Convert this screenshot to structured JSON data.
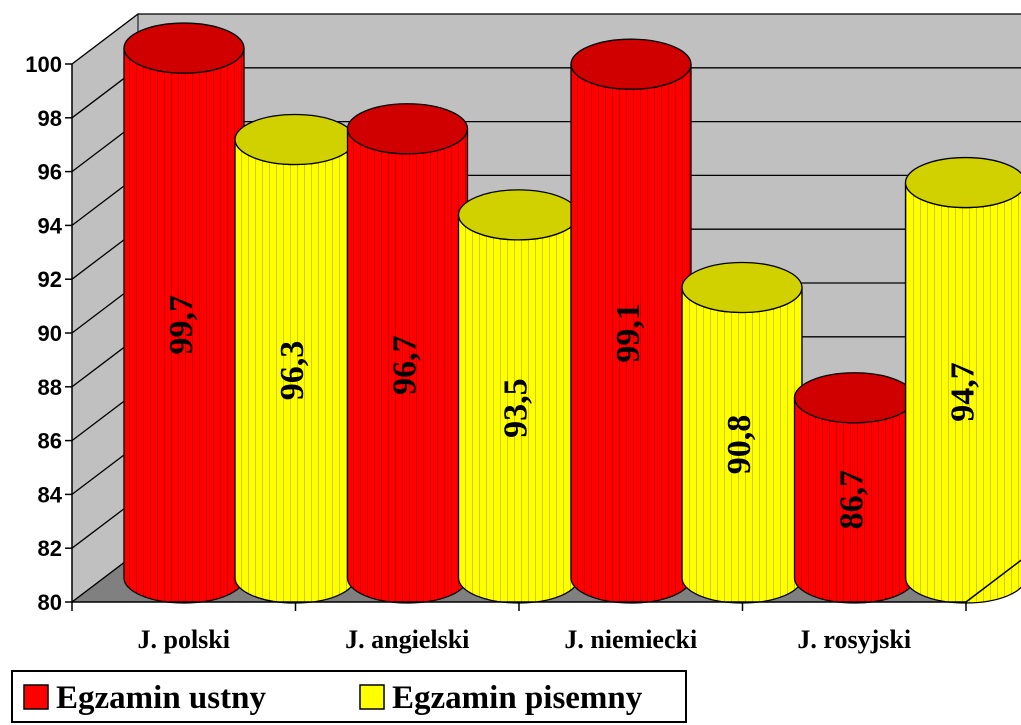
{
  "chart_data": {
    "type": "bar",
    "style": "3d-cylinder",
    "categories": [
      "J. polski",
      "J. angielski",
      "J. niemiecki",
      "J. rosyjski"
    ],
    "series": [
      {
        "name": "Egzamin ustny",
        "color": "#ff0000",
        "values": [
          99.7,
          96.7,
          99.1,
          86.7
        ]
      },
      {
        "name": "Egzamin pisemny",
        "color": "#ffff00",
        "values": [
          96.3,
          93.5,
          90.8,
          94.7
        ]
      }
    ],
    "data_labels": [
      [
        "99,7",
        "96,7",
        "99,1",
        "86,7"
      ],
      [
        "96,3",
        "93,5",
        "90,8",
        "94,7"
      ]
    ],
    "yticks": [
      "80",
      "82",
      "84",
      "86",
      "88",
      "90",
      "92",
      "94",
      "96",
      "98",
      "100"
    ],
    "ylim": [
      80,
      100
    ],
    "grid": true,
    "legend_position": "bottom-left",
    "title": "",
    "xlabel": "",
    "ylabel": ""
  }
}
